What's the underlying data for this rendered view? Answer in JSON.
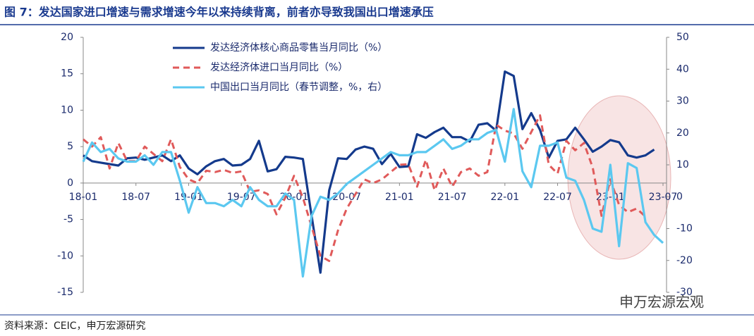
{
  "title": "图 7：发达国家进口增速与需求增速今年以来持续背离，前者亦导致我国出口增速承压",
  "source": "资料来源：CEIC，申万宏源研究",
  "watermark": "申万宏源宏观",
  "chart_data": {
    "type": "line",
    "categories": [
      "18-01",
      null,
      null,
      null,
      null,
      null,
      "18-07",
      null,
      null,
      null,
      null,
      null,
      "19-01",
      null,
      null,
      null,
      null,
      null,
      "19-07",
      null,
      null,
      null,
      null,
      null,
      "20-01",
      null,
      null,
      null,
      null,
      null,
      "20-07",
      null,
      null,
      null,
      null,
      null,
      "21-01",
      null,
      null,
      null,
      null,
      null,
      "21-07",
      null,
      null,
      null,
      null,
      null,
      "22-01",
      null,
      null,
      null,
      null,
      null,
      "22-07",
      null,
      null,
      null,
      null,
      null,
      "23-01",
      null,
      null,
      null,
      null,
      null,
      "23-07"
    ],
    "series": [
      {
        "name": "发达经济体核心商品零售当月同比（%）",
        "color": "#143a8c",
        "dash": false,
        "values": [
          3.8,
          3.0,
          2.8,
          2.6,
          2.4,
          3.4,
          3.5,
          3.2,
          3.5,
          3.8,
          3.0,
          3.8,
          2.0,
          1.2,
          2.3,
          3.0,
          3.3,
          2.4,
          2.5,
          3.3,
          5.8,
          1.6,
          1.9,
          3.6,
          3.5,
          3.3,
          -4.5,
          -12.3,
          -1,
          3.4,
          3.3,
          4.6,
          5.0,
          4.7,
          2.6,
          4.0,
          2.2,
          2.3,
          6.7,
          6.2,
          7.0,
          7.6,
          6.3,
          6.3,
          5.7,
          8.0,
          8.2,
          7.2,
          15.3,
          14.7,
          7.4,
          9.6,
          7.3,
          3.5,
          5.8,
          6.0,
          7.6,
          6.0,
          4.3,
          5.0,
          5.9,
          5.6,
          3.8,
          3.5,
          3.8,
          4.6,
          null
        ]
      },
      {
        "name": "发达经济体进口当月同比（%）",
        "color": "#e05a5a",
        "dash": true,
        "values": [
          6,
          5,
          6.3,
          2,
          5.5,
          3,
          3,
          5,
          4,
          3,
          6,
          2.2,
          0.5,
          0,
          1.7,
          1.5,
          1.8,
          1.4,
          1.6,
          -1.2,
          -1.0,
          -1.5,
          -4.3,
          -2.0,
          1.0,
          -2,
          -6,
          -10,
          -10.7,
          -6.5,
          -3.5,
          -1.5,
          0.5,
          0,
          0.5,
          1.5,
          2.5,
          2.6,
          -0.5,
          3.2,
          -1,
          2,
          -0.5,
          1.5,
          2,
          1,
          1.5,
          8.0,
          7.2,
          6.8,
          4.7,
          7.0,
          9.3,
          2.5,
          1.3,
          5.8,
          4.5,
          5.5,
          2.1,
          -4.5,
          0.5,
          -3,
          -4,
          -3.5,
          -4.6,
          null,
          null
        ]
      },
      {
        "name": "中国出口当月同比（春节调整，%，右）",
        "color": "#5bc8f0",
        "dash": false,
        "axis": "y2",
        "values": [
          11,
          17,
          14,
          15,
          12,
          11,
          11,
          13,
          10,
          14,
          14,
          5,
          -5,
          3,
          -2,
          -2,
          -3,
          -1,
          -3,
          3,
          -1,
          -3,
          -3,
          1,
          -1,
          -25,
          -6,
          0,
          -1,
          1,
          4,
          6,
          8,
          10,
          12,
          14,
          13,
          13,
          14,
          14,
          16,
          18,
          15,
          16,
          18,
          18,
          20,
          21,
          11,
          27.5,
          8,
          3,
          16,
          16,
          17,
          6,
          5,
          -1,
          -10,
          -11,
          10,
          -15.5,
          10.5,
          9,
          -8,
          -12,
          -14.5
        ]
      }
    ],
    "ylim": [
      -15,
      20
    ],
    "yticks": [
      -15,
      -10,
      -5,
      0,
      5,
      10,
      15,
      20
    ],
    "y2lim": [
      -30,
      50
    ],
    "y2ticks": [
      -30,
      -20,
      -10,
      0,
      10,
      20,
      30,
      40,
      50
    ]
  }
}
